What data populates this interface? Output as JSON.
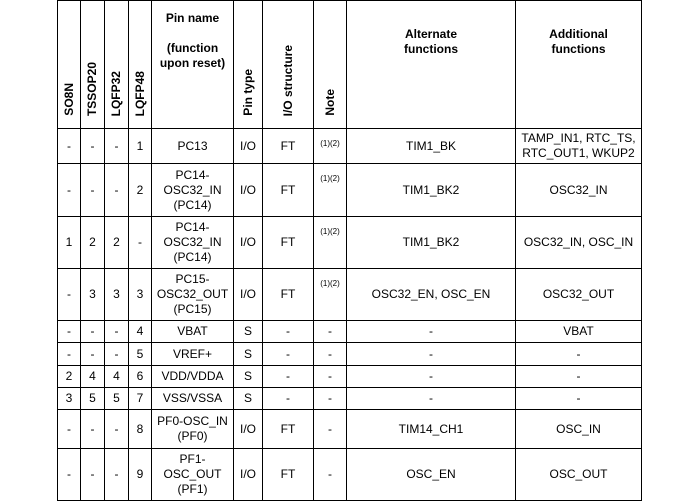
{
  "table": {
    "headers": [
      "SO8N",
      "TSSOP20",
      "LQFP32",
      "LQFP48",
      "Pin name\n\n(function\nupon reset)",
      "Pin type",
      "I/O structure",
      "Note",
      "Alternate\nfunctions",
      "Additional\nfunctions"
    ],
    "rows": [
      [
        "-",
        "-",
        "-",
        "1",
        "PC13",
        "I/O",
        "FT",
        "(1)(2)",
        "TIM1_BK",
        "TAMP_IN1, RTC_TS,\nRTC_OUT1, WKUP2"
      ],
      [
        "-",
        "-",
        "-",
        "2",
        "PC14-\nOSC32_IN\n(PC14)",
        "I/O",
        "FT",
        "(1)(2)",
        "TIM1_BK2",
        "OSC32_IN"
      ],
      [
        "1",
        "2",
        "2",
        "-",
        "PC14-\nOSC32_IN\n(PC14)",
        "I/O",
        "FT",
        "(1)(2)",
        "TIM1_BK2",
        "OSC32_IN, OSC_IN"
      ],
      [
        "-",
        "3",
        "3",
        "3",
        "PC15-\nOSC32_OUT\n(PC15)",
        "I/O",
        "FT",
        "(1)(2)",
        "OSC32_EN, OSC_EN",
        "OSC32_OUT"
      ],
      [
        "-",
        "-",
        "-",
        "4",
        "VBAT",
        "S",
        "-",
        "-",
        "-",
        "VBAT"
      ],
      [
        "-",
        "-",
        "-",
        "5",
        "VREF+",
        "S",
        "-",
        "-",
        "-",
        "-"
      ],
      [
        "2",
        "4",
        "4",
        "6",
        "VDD/VDDA",
        "S",
        "-",
        "-",
        "-",
        "-"
      ],
      [
        "3",
        "5",
        "5",
        "7",
        "VSS/VSSA",
        "S",
        "-",
        "-",
        "-",
        "-"
      ],
      [
        "-",
        "-",
        "-",
        "8",
        "PF0-OSC_IN\n(PF0)",
        "I/O",
        "FT",
        "-",
        "TIM14_CH1",
        "OSC_IN"
      ],
      [
        "-",
        "-",
        "-",
        "9",
        "PF1-\nOSC_OUT\n(PF1)",
        "I/O",
        "FT",
        "-",
        "OSC_EN",
        "OSC_OUT"
      ]
    ]
  }
}
